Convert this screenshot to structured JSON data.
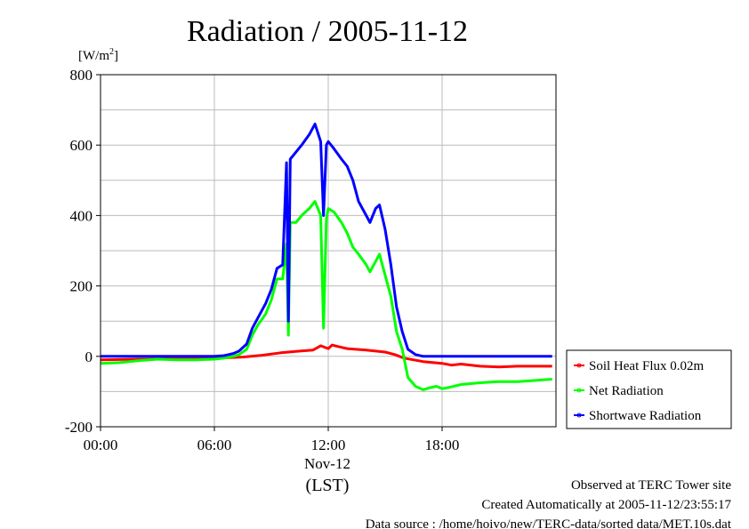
{
  "chart_data": {
    "type": "line",
    "title": "Radiation / 2005-11-12",
    "ylabel_unit": "[W/m",
    "ylabel_unit_sup": "2",
    "ylabel_unit_close": "]",
    "ylim": [
      -200,
      800
    ],
    "yticks": [
      "-200",
      "0",
      "200",
      "400",
      "600",
      "800"
    ],
    "yticks_values": [
      -200,
      0,
      200,
      400,
      600,
      800
    ],
    "xlim_hours": [
      0,
      24
    ],
    "xticks": [
      "00:00",
      "06:00",
      "12:00",
      "18:00"
    ],
    "xticks_hours": [
      0,
      6,
      12,
      18
    ],
    "xdate_label": "Nov-12",
    "xunit": "(LST)",
    "grid": true,
    "legend_position": "right",
    "series": [
      {
        "name": "Soil Heat Flux 0.02m",
        "color": "#ff0000",
        "points": [
          [
            0,
            -10
          ],
          [
            2,
            -8
          ],
          [
            4,
            -6
          ],
          [
            6,
            -5
          ],
          [
            7.5,
            -2
          ],
          [
            8.5,
            3
          ],
          [
            9.5,
            10
          ],
          [
            10.5,
            15
          ],
          [
            11.2,
            18
          ],
          [
            11.6,
            30
          ],
          [
            12,
            22
          ],
          [
            12.2,
            32
          ],
          [
            12.5,
            28
          ],
          [
            13,
            22
          ],
          [
            14,
            18
          ],
          [
            15,
            12
          ],
          [
            15.5,
            5
          ],
          [
            16,
            -5
          ],
          [
            17,
            -15
          ],
          [
            18,
            -20
          ],
          [
            18.5,
            -25
          ],
          [
            19,
            -22
          ],
          [
            20,
            -28
          ],
          [
            21,
            -30
          ],
          [
            22,
            -28
          ],
          [
            23,
            -28
          ],
          [
            23.8,
            -28
          ]
        ]
      },
      {
        "name": "Net Radiation",
        "color": "#00ff00",
        "points": [
          [
            0,
            -20
          ],
          [
            1,
            -18
          ],
          [
            2,
            -12
          ],
          [
            3,
            -8
          ],
          [
            4,
            -10
          ],
          [
            5,
            -10
          ],
          [
            6,
            -8
          ],
          [
            6.5,
            -5
          ],
          [
            7,
            0
          ],
          [
            7.3,
            5
          ],
          [
            7.7,
            20
          ],
          [
            8,
            60
          ],
          [
            8.3,
            90
          ],
          [
            8.7,
            120
          ],
          [
            9,
            160
          ],
          [
            9.3,
            220
          ],
          [
            9.6,
            220
          ],
          [
            9.8,
            320
          ],
          [
            9.9,
            60
          ],
          [
            10,
            380
          ],
          [
            10.3,
            380
          ],
          [
            10.6,
            400
          ],
          [
            11,
            420
          ],
          [
            11.3,
            440
          ],
          [
            11.6,
            400
          ],
          [
            11.75,
            80
          ],
          [
            11.9,
            390
          ],
          [
            12,
            420
          ],
          [
            12.3,
            410
          ],
          [
            12.7,
            380
          ],
          [
            13,
            350
          ],
          [
            13.3,
            310
          ],
          [
            13.6,
            290
          ],
          [
            14,
            260
          ],
          [
            14.2,
            240
          ],
          [
            14.5,
            270
          ],
          [
            14.7,
            290
          ],
          [
            15,
            230
          ],
          [
            15.3,
            170
          ],
          [
            15.6,
            70
          ],
          [
            15.9,
            20
          ],
          [
            16.2,
            -60
          ],
          [
            16.6,
            -85
          ],
          [
            17,
            -95
          ],
          [
            17.3,
            -90
          ],
          [
            17.7,
            -85
          ],
          [
            18,
            -92
          ],
          [
            18.4,
            -88
          ],
          [
            19,
            -80
          ],
          [
            20,
            -75
          ],
          [
            21,
            -72
          ],
          [
            22,
            -72
          ],
          [
            23,
            -68
          ],
          [
            23.8,
            -65
          ]
        ]
      },
      {
        "name": "Shortwave Radiation",
        "color": "#0000ff",
        "points": [
          [
            0,
            0
          ],
          [
            2,
            0
          ],
          [
            4,
            0
          ],
          [
            5,
            0
          ],
          [
            6,
            0
          ],
          [
            6.5,
            2
          ],
          [
            7,
            8
          ],
          [
            7.3,
            15
          ],
          [
            7.7,
            35
          ],
          [
            8,
            80
          ],
          [
            8.3,
            110
          ],
          [
            8.7,
            150
          ],
          [
            9,
            190
          ],
          [
            9.3,
            250
          ],
          [
            9.6,
            260
          ],
          [
            9.8,
            550
          ],
          [
            9.9,
            100
          ],
          [
            10,
            560
          ],
          [
            10.3,
            580
          ],
          [
            10.6,
            600
          ],
          [
            11,
            630
          ],
          [
            11.3,
            660
          ],
          [
            11.6,
            610
          ],
          [
            11.75,
            400
          ],
          [
            11.9,
            600
          ],
          [
            12,
            610
          ],
          [
            12.3,
            590
          ],
          [
            12.7,
            560
          ],
          [
            13,
            540
          ],
          [
            13.3,
            500
          ],
          [
            13.6,
            440
          ],
          [
            14,
            400
          ],
          [
            14.2,
            380
          ],
          [
            14.5,
            420
          ],
          [
            14.7,
            430
          ],
          [
            15,
            360
          ],
          [
            15.3,
            260
          ],
          [
            15.6,
            140
          ],
          [
            15.9,
            70
          ],
          [
            16.2,
            20
          ],
          [
            16.6,
            5
          ],
          [
            17,
            0
          ],
          [
            18,
            0
          ],
          [
            19,
            0
          ],
          [
            20,
            0
          ],
          [
            21,
            0
          ],
          [
            22,
            0
          ],
          [
            23,
            0
          ],
          [
            23.8,
            0
          ]
        ]
      }
    ]
  },
  "notes": {
    "site": "Observed at TERC Tower site",
    "created": "Created Automatically at 2005-11-12/23:55:17",
    "source": "Data source : /home/hoivo/new/TERC-data/sorted  data/MET.10s.dat"
  }
}
